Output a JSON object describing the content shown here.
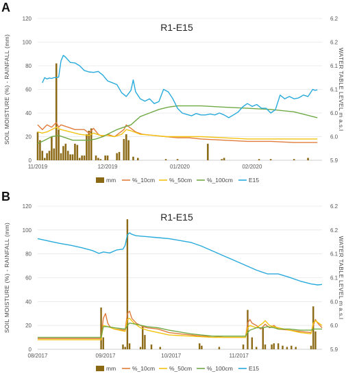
{
  "chart_data": [
    {
      "panel": "A",
      "type": "bar+line",
      "title": "R1-E15",
      "ylabel": "SOIL MOISTURE (%) - RAINFALL (mm)",
      "y2label": "WATER TABLE LEVEL m a.s.l",
      "ylim": [
        0,
        120
      ],
      "y2lim": [
        5.9,
        6.2
      ],
      "yticks": [
        "0",
        "20",
        "40",
        "60",
        "80",
        "100",
        "120"
      ],
      "y2ticks": [
        "5.9",
        "6.0",
        "6.0",
        "6.1",
        "6.1",
        "6.2",
        "6.2"
      ],
      "xlim": [
        0,
        122
      ],
      "xticks": [
        {
          "x": 0,
          "label": "11/2019"
        },
        {
          "x": 30,
          "label": "12/2019"
        },
        {
          "x": 61,
          "label": "01/2020"
        },
        {
          "x": 92,
          "label": "02/2020"
        }
      ],
      "legend": [
        "mm",
        "%_10cm",
        "%_50cm",
        "%_100cm",
        "E15"
      ],
      "colors": {
        "mm": "#8b6914",
        "%_10cm": "#e07a3a",
        "%_50cm": "#f2c20f",
        "%_100cm": "#6fa944",
        "E15": "#26aadc"
      },
      "bars": [
        [
          0,
          24
        ],
        [
          1,
          17
        ],
        [
          2,
          8
        ],
        [
          3,
          2
        ],
        [
          4,
          6
        ],
        [
          5,
          8
        ],
        [
          6,
          20
        ],
        [
          7,
          10
        ],
        [
          8,
          82
        ],
        [
          9,
          26
        ],
        [
          10,
          6
        ],
        [
          11,
          12
        ],
        [
          12,
          14
        ],
        [
          13,
          8
        ],
        [
          14,
          5
        ],
        [
          15,
          5
        ],
        [
          16,
          14
        ],
        [
          17,
          13
        ],
        [
          18,
          2
        ],
        [
          19,
          4
        ],
        [
          20,
          4
        ],
        [
          21,
          22
        ],
        [
          22,
          25
        ],
        [
          23,
          27
        ],
        [
          25,
          4
        ],
        [
          26,
          2
        ],
        [
          27,
          1
        ],
        [
          29,
          4
        ],
        [
          30,
          4
        ],
        [
          34,
          6
        ],
        [
          35,
          7
        ],
        [
          37,
          18
        ],
        [
          38,
          22
        ],
        [
          39,
          17
        ],
        [
          41,
          3
        ],
        [
          43,
          2
        ],
        [
          55,
          1
        ],
        [
          60,
          1
        ],
        [
          73,
          14
        ],
        [
          79,
          1
        ],
        [
          80,
          2
        ],
        [
          95,
          1
        ],
        [
          100,
          1
        ],
        [
          110,
          1
        ],
        [
          116,
          2
        ]
      ],
      "series": [
        {
          "name": "%_10cm",
          "x": [
            0,
            2,
            4,
            6,
            8,
            9,
            10,
            13,
            16,
            20,
            22,
            24,
            26,
            28,
            30,
            33,
            35,
            37,
            38,
            40,
            42,
            45,
            50,
            55,
            60,
            65,
            70,
            80,
            90,
            100,
            110,
            120
          ],
          "values": [
            30,
            26,
            30,
            28,
            32,
            28,
            30,
            28,
            26,
            26,
            23,
            27,
            22,
            20,
            22,
            20,
            23,
            26,
            30,
            27,
            24,
            22,
            21,
            20,
            19,
            19,
            18,
            17,
            16,
            16,
            15,
            15
          ]
        },
        {
          "name": "%_50cm",
          "x": [
            0,
            2,
            4,
            6,
            8,
            10,
            14,
            18,
            22,
            24,
            27,
            30,
            33,
            36,
            38,
            40,
            44,
            50,
            55,
            60,
            70,
            80,
            90,
            100,
            110,
            120
          ],
          "values": [
            24,
            23,
            24,
            26,
            28,
            26,
            24,
            22,
            21,
            23,
            21,
            21,
            20,
            22,
            26,
            25,
            22,
            21,
            20,
            20,
            20,
            19,
            18,
            18,
            18,
            18
          ]
        },
        {
          "name": "%_100cm",
          "x": [
            0,
            3,
            6,
            9,
            12,
            15,
            18,
            22,
            25,
            28,
            31,
            34,
            37,
            40,
            44,
            48,
            52,
            56,
            60,
            65,
            70,
            80,
            90,
            100,
            110,
            116,
            120
          ],
          "values": [
            14,
            17,
            20,
            21,
            19,
            17,
            17,
            17,
            18,
            20,
            23,
            26,
            28,
            30,
            37,
            40,
            43,
            45,
            46,
            46,
            46,
            45,
            44,
            43,
            41,
            38,
            36
          ]
        },
        {
          "name": "E15",
          "x": [
            2,
            3,
            4,
            5,
            6,
            7,
            8,
            9,
            10,
            11,
            12,
            14,
            16,
            18,
            20,
            22,
            24,
            26,
            28,
            30,
            32,
            34,
            36,
            38,
            40,
            41,
            42,
            44,
            46,
            48,
            50,
            52,
            54,
            56,
            58,
            60,
            62,
            64,
            66,
            68,
            70,
            72,
            74,
            76,
            78,
            80,
            82,
            84,
            86,
            88,
            90,
            92,
            94,
            96,
            98,
            100,
            102,
            104,
            106,
            108,
            110,
            112,
            114,
            116,
            118,
            119,
            120
          ],
          "values": [
            6.064,
            6.075,
            6.072,
            6.074,
            6.073,
            6.075,
            6.075,
            6.076,
            6.11,
            6.122,
            6.118,
            6.107,
            6.106,
            6.1,
            6.09,
            6.087,
            6.086,
            6.088,
            6.08,
            6.068,
            6.064,
            6.06,
            6.043,
            6.035,
            6.048,
            6.07,
            6.045,
            6.03,
            6.025,
            6.03,
            6.02,
            6.024,
            6.05,
            6.045,
            6.03,
            6.01,
            6.0,
            5.997,
            5.994,
            5.999,
            5.996,
            5.996,
            5.998,
            5.996,
            6.0,
            5.996,
            5.99,
            5.996,
            6.002,
            6.013,
            6.02,
            6.014,
            6.018,
            6.01,
            6.01,
            6.0,
            6.007,
            6.038,
            6.03,
            6.035,
            6.03,
            6.032,
            6.038,
            6.035,
            6.05,
            6.048,
            6.049
          ]
        }
      ]
    },
    {
      "panel": "B",
      "type": "bar+line",
      "title": "R1-E15",
      "ylabel": "SOIL MOISTURE (%) - RAINFALL (mm)",
      "y2label": "WATER TABLE LEVEL m a.s.l",
      "ylim": [
        0,
        120
      ],
      "y2lim": [
        5.9,
        6.2
      ],
      "yticks": [
        "0",
        "20",
        "40",
        "60",
        "80",
        "100",
        "120"
      ],
      "y2ticks": [
        "5.9",
        "6.0",
        "6.0",
        "6.1",
        "6.1",
        "6.2",
        "6.2"
      ],
      "xlim": [
        0,
        130
      ],
      "xticks": [
        {
          "x": 0,
          "label": "08/2017"
        },
        {
          "x": 31,
          "label": "09/2017"
        },
        {
          "x": 61,
          "label": "10/2017"
        },
        {
          "x": 92,
          "label": "11/2017"
        }
      ],
      "legend": [
        "mm",
        "%_10cm",
        "%_50cm",
        "%_100cm",
        "E15"
      ],
      "colors": {
        "mm": "#8b6914",
        "%_10cm": "#e07a3a",
        "%_50cm": "#f2c20f",
        "%_100cm": "#6fa944",
        "E15": "#26aadc"
      },
      "bars": [
        [
          29,
          35
        ],
        [
          30,
          10
        ],
        [
          39,
          4
        ],
        [
          40,
          2
        ],
        [
          41,
          109
        ],
        [
          42,
          5
        ],
        [
          47,
          2
        ],
        [
          48,
          20
        ],
        [
          49,
          12
        ],
        [
          52,
          4
        ],
        [
          56,
          2
        ],
        [
          74,
          5
        ],
        [
          75,
          3
        ],
        [
          83,
          2
        ],
        [
          94,
          4
        ],
        [
          96,
          33
        ],
        [
          98,
          10
        ],
        [
          100,
          2
        ],
        [
          103,
          18
        ],
        [
          104,
          4
        ],
        [
          107,
          4
        ],
        [
          108,
          5
        ],
        [
          110,
          5
        ],
        [
          112,
          3
        ],
        [
          114,
          2
        ],
        [
          116,
          3
        ],
        [
          118,
          2
        ],
        [
          125,
          3
        ],
        [
          126,
          36
        ],
        [
          127,
          15
        ]
      ],
      "series": [
        {
          "name": "%_10cm",
          "x": [
            0,
            10,
            20,
            28,
            29,
            30,
            31,
            32,
            33,
            35,
            40,
            41,
            42,
            43,
            45,
            48,
            50,
            55,
            60,
            65,
            70,
            75,
            80,
            85,
            90,
            95,
            96,
            97,
            98,
            100,
            102,
            104,
            106,
            108,
            110,
            115,
            120,
            125,
            126,
            127,
            128,
            129,
            130
          ],
          "values": [
            9,
            9,
            9,
            9,
            9,
            26,
            30,
            22,
            19,
            17,
            16,
            30,
            32,
            26,
            22,
            19,
            18,
            17,
            14,
            13,
            12,
            11,
            11,
            10,
            10,
            10,
            22,
            25,
            22,
            20,
            17,
            21,
            18,
            20,
            17,
            16,
            15,
            14,
            20,
            25,
            22,
            20,
            18
          ]
        },
        {
          "name": "%_50cm",
          "x": [
            0,
            10,
            20,
            28,
            29,
            30,
            32,
            35,
            40,
            41,
            42,
            44,
            47,
            50,
            55,
            60,
            70,
            80,
            90,
            95,
            96,
            97,
            100,
            103,
            104,
            106,
            108,
            110,
            115,
            120,
            125,
            126,
            127,
            130
          ],
          "values": [
            8,
            8,
            8,
            8,
            8,
            20,
            19,
            17,
            15,
            25,
            26,
            22,
            18,
            16,
            14,
            12,
            11,
            10,
            10,
            10,
            18,
            20,
            18,
            22,
            24,
            20,
            19,
            18,
            16,
            14,
            13,
            22,
            24,
            20
          ]
        },
        {
          "name": "%_100cm",
          "x": [
            0,
            10,
            20,
            28,
            29,
            30,
            32,
            35,
            40,
            41,
            42,
            45,
            50,
            55,
            60,
            70,
            80,
            90,
            95,
            96,
            97,
            100,
            103,
            105,
            108,
            110,
            115,
            120,
            125,
            126,
            127,
            130
          ],
          "values": [
            10,
            10,
            10,
            10,
            10,
            19,
            19,
            18,
            17,
            20,
            22,
            21,
            19,
            18,
            16,
            13,
            11,
            11,
            11,
            14,
            16,
            18,
            18,
            19,
            18,
            17,
            17,
            16,
            16,
            17,
            17,
            17
          ]
        },
        {
          "name": "E15",
          "x": [
            0,
            5,
            10,
            15,
            20,
            25,
            28,
            30,
            33,
            36,
            39,
            40,
            41,
            42,
            43,
            45,
            50,
            55,
            60,
            65,
            70,
            75,
            80,
            85,
            90,
            95,
            100,
            105,
            110,
            115,
            120,
            125,
            128,
            130
          ],
          "values": [
            6.132,
            6.127,
            6.122,
            6.118,
            6.113,
            6.107,
            6.101,
            6.104,
            6.102,
            6.108,
            6.11,
            6.118,
            6.14,
            6.144,
            6.141,
            6.138,
            6.136,
            6.134,
            6.132,
            6.128,
            6.124,
            6.116,
            6.106,
            6.096,
            6.086,
            6.076,
            6.066,
            6.058,
            6.058,
            6.051,
            6.043,
            6.037,
            6.035,
            6.036
          ]
        }
      ]
    }
  ]
}
